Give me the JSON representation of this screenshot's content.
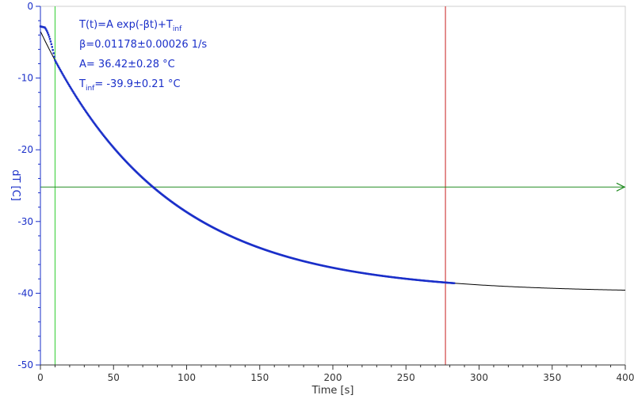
{
  "chart_data": {
    "type": "scatter",
    "xlabel": "Time [s]",
    "ylabel": "dT [C]",
    "xlim": [
      0,
      400
    ],
    "ylim": [
      -50,
      0
    ],
    "x_ticks": [
      0,
      50,
      100,
      150,
      200,
      250,
      300,
      350,
      400
    ],
    "y_ticks": [
      0,
      -10,
      -20,
      -30,
      -40,
      -50
    ],
    "grid": false,
    "annotation": {
      "line1": "T(t)=A exp(-βt)+T",
      "line1_sub": "inf",
      "line2": "β=0.01178±0.00026 1/s",
      "line3": "A= 36.42±0.28 °C",
      "line4_main": "T",
      "line4_sub": "inf",
      "line4_rest": "= -39.9±0.21 °C"
    },
    "fit": {
      "A": 36.42,
      "beta": 0.01178,
      "T_inf": -39.9,
      "x_range": [
        0,
        400
      ]
    },
    "measured": {
      "x_range": [
        0,
        283
      ],
      "initial_offset": -2.8
    },
    "cursors": {
      "vertical": [
        {
          "x": 10,
          "color": "#32cd32"
        },
        {
          "x": 277,
          "color": "#c81e1e"
        }
      ],
      "horizontal": {
        "y": -25.2,
        "color": "#228b22"
      }
    },
    "colors": {
      "data": "#1a2fc9",
      "fit": "#000000",
      "axis": "#1a2fc9",
      "text": "#1a2fc9"
    }
  }
}
